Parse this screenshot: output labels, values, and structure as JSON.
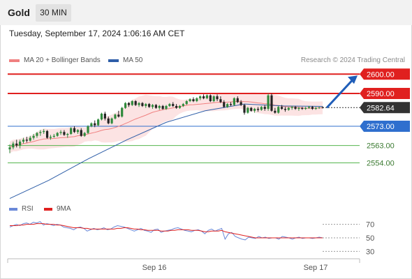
{
  "header": {
    "instrument": "Gold",
    "timeframe": "30 MIN"
  },
  "datetime": "Tuesday, September 17, 2024 1:06:16 AM CET",
  "legend": {
    "ma20": "MA 20 + Bollinger Bands",
    "ma50": "MA 50",
    "rsi": "RSI",
    "ma9": "9MA",
    "copyright": "Research © 2024 Trading Central"
  },
  "colors": {
    "resistance": "#e0201f",
    "support": "#2f6fce",
    "target": "#55b54e",
    "ma20": "#f08080",
    "ma50": "#2e5ea8",
    "bollinger": "#fbdada",
    "current": "#333333",
    "forecast_arrow": "#1f5db8",
    "rsi": "#6a88d8",
    "ma9": "#e0201f"
  },
  "chart_data": [
    {
      "type": "candlestick",
      "title": "Gold 30 MIN",
      "y_range": [
        2535,
        2603
      ],
      "x_labels": [
        "Sep 16",
        "Sep 17"
      ],
      "levels": [
        {
          "label": "2600.00",
          "value": 2600.0,
          "kind": "resistance"
        },
        {
          "label": "2590.00",
          "value": 2590.0,
          "kind": "resistance"
        },
        {
          "label": "2582.64",
          "value": 2582.64,
          "kind": "current"
        },
        {
          "label": "2573.00",
          "value": 2573.0,
          "kind": "support"
        },
        {
          "label": "2563.00",
          "value": 2563.0,
          "kind": "target"
        },
        {
          "label": "2554.00",
          "value": 2554.0,
          "kind": "target"
        }
      ],
      "forecast_arrow": {
        "from": 2582.6,
        "to": 2600.0
      },
      "candles": [
        [
          2561.0,
          2563.5,
          2559.0,
          2562.0
        ],
        [
          2562.0,
          2565.0,
          2561.0,
          2564.0
        ],
        [
          2564.0,
          2566.0,
          2562.0,
          2563.0
        ],
        [
          2563.0,
          2566.0,
          2561.5,
          2565.0
        ],
        [
          2565.0,
          2567.0,
          2564.0,
          2566.0
        ],
        [
          2566.0,
          2567.5,
          2564.5,
          2565.5
        ],
        [
          2565.5,
          2568.0,
          2565.0,
          2567.0
        ],
        [
          2567.0,
          2569.0,
          2566.0,
          2568.0
        ],
        [
          2568.0,
          2570.0,
          2567.0,
          2569.5
        ],
        [
          2569.5,
          2571.0,
          2568.0,
          2570.0
        ],
        [
          2570.0,
          2571.5,
          2569.0,
          2570.5
        ],
        [
          2570.5,
          2571.0,
          2566.5,
          2567.0
        ],
        [
          2567.0,
          2568.5,
          2566.0,
          2567.5
        ],
        [
          2567.5,
          2569.0,
          2567.0,
          2568.0
        ],
        [
          2568.0,
          2570.0,
          2567.5,
          2569.5
        ],
        [
          2569.5,
          2571.0,
          2568.5,
          2570.0
        ],
        [
          2570.0,
          2571.0,
          2568.0,
          2568.5
        ],
        [
          2568.5,
          2569.5,
          2567.0,
          2569.0
        ],
        [
          2569.0,
          2572.5,
          2568.5,
          2572.0
        ],
        [
          2572.0,
          2573.0,
          2569.5,
          2570.0
        ],
        [
          2570.0,
          2571.5,
          2569.0,
          2571.0
        ],
        [
          2571.0,
          2572.0,
          2567.5,
          2568.0
        ],
        [
          2568.0,
          2570.0,
          2567.5,
          2569.5
        ],
        [
          2569.5,
          2573.5,
          2569.0,
          2573.0
        ],
        [
          2573.0,
          2575.0,
          2572.5,
          2574.5
        ],
        [
          2574.5,
          2576.0,
          2572.5,
          2573.5
        ],
        [
          2573.5,
          2577.0,
          2573.0,
          2576.5
        ],
        [
          2576.5,
          2580.0,
          2576.0,
          2579.5
        ],
        [
          2579.5,
          2580.5,
          2576.0,
          2577.0
        ],
        [
          2577.0,
          2578.0,
          2574.0,
          2574.5
        ],
        [
          2574.5,
          2577.5,
          2574.0,
          2577.0
        ],
        [
          2577.0,
          2579.5,
          2576.5,
          2579.0
        ],
        [
          2579.0,
          2581.0,
          2577.5,
          2578.0
        ],
        [
          2578.0,
          2583.0,
          2577.5,
          2582.5
        ],
        [
          2582.5,
          2585.5,
          2582.0,
          2585.0
        ],
        [
          2585.0,
          2585.5,
          2583.0,
          2584.0
        ],
        [
          2584.0,
          2586.5,
          2583.5,
          2586.0
        ],
        [
          2586.0,
          2586.5,
          2583.5,
          2584.0
        ],
        [
          2584.0,
          2585.5,
          2583.0,
          2585.0
        ],
        [
          2585.0,
          2585.5,
          2583.0,
          2583.5
        ],
        [
          2583.5,
          2585.0,
          2582.5,
          2584.5
        ],
        [
          2584.5,
          2585.0,
          2582.5,
          2583.0
        ],
        [
          2583.0,
          2584.5,
          2582.0,
          2584.0
        ],
        [
          2584.0,
          2584.5,
          2582.0,
          2582.5
        ],
        [
          2582.5,
          2584.0,
          2581.5,
          2583.5
        ],
        [
          2583.5,
          2584.0,
          2581.5,
          2582.0
        ],
        [
          2582.0,
          2584.0,
          2581.5,
          2583.5
        ],
        [
          2583.5,
          2585.0,
          2583.0,
          2584.5
        ],
        [
          2584.5,
          2585.5,
          2583.0,
          2583.5
        ],
        [
          2583.5,
          2584.5,
          2582.0,
          2582.5
        ],
        [
          2582.5,
          2584.0,
          2582.0,
          2583.5
        ],
        [
          2583.5,
          2585.0,
          2583.0,
          2584.5
        ],
        [
          2584.5,
          2586.5,
          2584.0,
          2586.0
        ],
        [
          2586.0,
          2587.5,
          2585.5,
          2587.0
        ],
        [
          2587.0,
          2588.0,
          2585.5,
          2586.0
        ],
        [
          2586.0,
          2588.0,
          2585.5,
          2587.5
        ],
        [
          2587.5,
          2589.0,
          2586.5,
          2588.5
        ],
        [
          2588.5,
          2589.5,
          2587.0,
          2587.5
        ],
        [
          2587.5,
          2589.5,
          2587.0,
          2589.0
        ],
        [
          2589.0,
          2589.5,
          2585.5,
          2586.0
        ],
        [
          2586.0,
          2589.0,
          2585.5,
          2588.5
        ],
        [
          2588.5,
          2589.5,
          2586.0,
          2587.0
        ],
        [
          2587.0,
          2588.5,
          2585.0,
          2585.5
        ],
        [
          2585.5,
          2586.5,
          2582.5,
          2583.0
        ],
        [
          2583.0,
          2585.0,
          2582.5,
          2584.5
        ],
        [
          2584.5,
          2585.5,
          2583.5,
          2584.0
        ],
        [
          2584.0,
          2588.0,
          2583.5,
          2587.5
        ],
        [
          2587.5,
          2588.5,
          2585.0,
          2585.5
        ],
        [
          2585.5,
          2586.5,
          2583.5,
          2584.0
        ],
        [
          2584.0,
          2584.5,
          2579.0,
          2580.0
        ],
        [
          2580.0,
          2583.0,
          2579.5,
          2582.5
        ],
        [
          2582.5,
          2583.0,
          2580.5,
          2581.0
        ],
        [
          2581.0,
          2582.5,
          2580.0,
          2582.0
        ],
        [
          2582.0,
          2583.0,
          2580.5,
          2581.5
        ],
        [
          2581.5,
          2583.5,
          2581.0,
          2583.0
        ],
        [
          2583.0,
          2584.0,
          2581.0,
          2582.0
        ],
        [
          2582.0,
          2590.0,
          2581.0,
          2589.0
        ],
        [
          2589.0,
          2590.0,
          2580.5,
          2581.0
        ],
        [
          2581.0,
          2582.5,
          2579.5,
          2580.0
        ],
        [
          2580.0,
          2583.5,
          2579.5,
          2583.0
        ],
        [
          2583.0,
          2584.0,
          2581.5,
          2582.0
        ],
        [
          2582.0,
          2583.0,
          2580.5,
          2581.5
        ],
        [
          2581.5,
          2583.0,
          2581.0,
          2582.5
        ],
        [
          2582.5,
          2583.5,
          2581.5,
          2583.0
        ],
        [
          2583.0,
          2583.5,
          2581.5,
          2582.0
        ],
        [
          2582.0,
          2583.0,
          2581.0,
          2582.5
        ],
        [
          2582.5,
          2583.0,
          2581.5,
          2582.0
        ],
        [
          2582.0,
          2583.0,
          2581.5,
          2582.5
        ],
        [
          2582.5,
          2583.5,
          2582.0,
          2583.0
        ],
        [
          2583.0,
          2583.5,
          2581.5,
          2582.0
        ],
        [
          2582.0,
          2583.0,
          2581.5,
          2582.5
        ],
        [
          2582.5,
          2583.0,
          2582.0,
          2582.8
        ],
        [
          2582.8,
          2583.3,
          2582.2,
          2582.64
        ]
      ],
      "ma50": [
        2535.5,
        2545,
        2556,
        2566,
        2575,
        2581,
        2584.5,
        2583.5,
        2583.3
      ]
    },
    {
      "type": "line",
      "title": "RSI",
      "y_range": [
        20,
        82
      ],
      "y_ticks": [
        "70",
        "50",
        "30"
      ],
      "series": [
        {
          "name": "RSI",
          "values": [
            66,
            68,
            70,
            68,
            71,
            72,
            70,
            73,
            72,
            74,
            69,
            71,
            70,
            68,
            70,
            69,
            66,
            65,
            64,
            62,
            65,
            66,
            64,
            60,
            62,
            64,
            62,
            63,
            65,
            62,
            63,
            66,
            68,
            67,
            66,
            64,
            62,
            60,
            62,
            64,
            61,
            60,
            58,
            62,
            63,
            58,
            60,
            61,
            62,
            64,
            65,
            63,
            61,
            60,
            59,
            61,
            62,
            60,
            56,
            61,
            63,
            60,
            62,
            64,
            48,
            56,
            58,
            52,
            50,
            48,
            47,
            51,
            50,
            49,
            52,
            50,
            51,
            49,
            50,
            50,
            48,
            52,
            51,
            50,
            48,
            50,
            51,
            49,
            50,
            50,
            49,
            50,
            51,
            50
          ]
        },
        {
          "name": "9MA",
          "values": [
            68,
            68,
            68,
            69,
            69,
            70,
            70,
            70,
            71,
            71,
            71,
            70,
            70,
            70,
            69,
            69,
            68,
            67,
            66,
            65,
            65,
            65,
            64,
            64,
            63,
            63,
            63,
            63,
            63,
            63,
            63,
            63,
            64,
            64,
            65,
            65,
            64,
            63,
            63,
            62,
            62,
            61,
            61,
            61,
            61,
            60,
            60,
            60,
            61,
            61,
            62,
            62,
            62,
            62,
            61,
            61,
            61,
            60,
            59,
            59,
            60,
            60,
            60,
            61,
            59,
            58,
            57,
            56,
            55,
            54,
            53,
            52,
            51,
            50,
            50,
            50,
            50,
            50,
            50,
            50,
            50,
            50,
            50,
            50,
            50,
            50,
            50,
            50,
            50,
            50,
            50,
            50,
            50,
            50
          ]
        }
      ]
    }
  ]
}
